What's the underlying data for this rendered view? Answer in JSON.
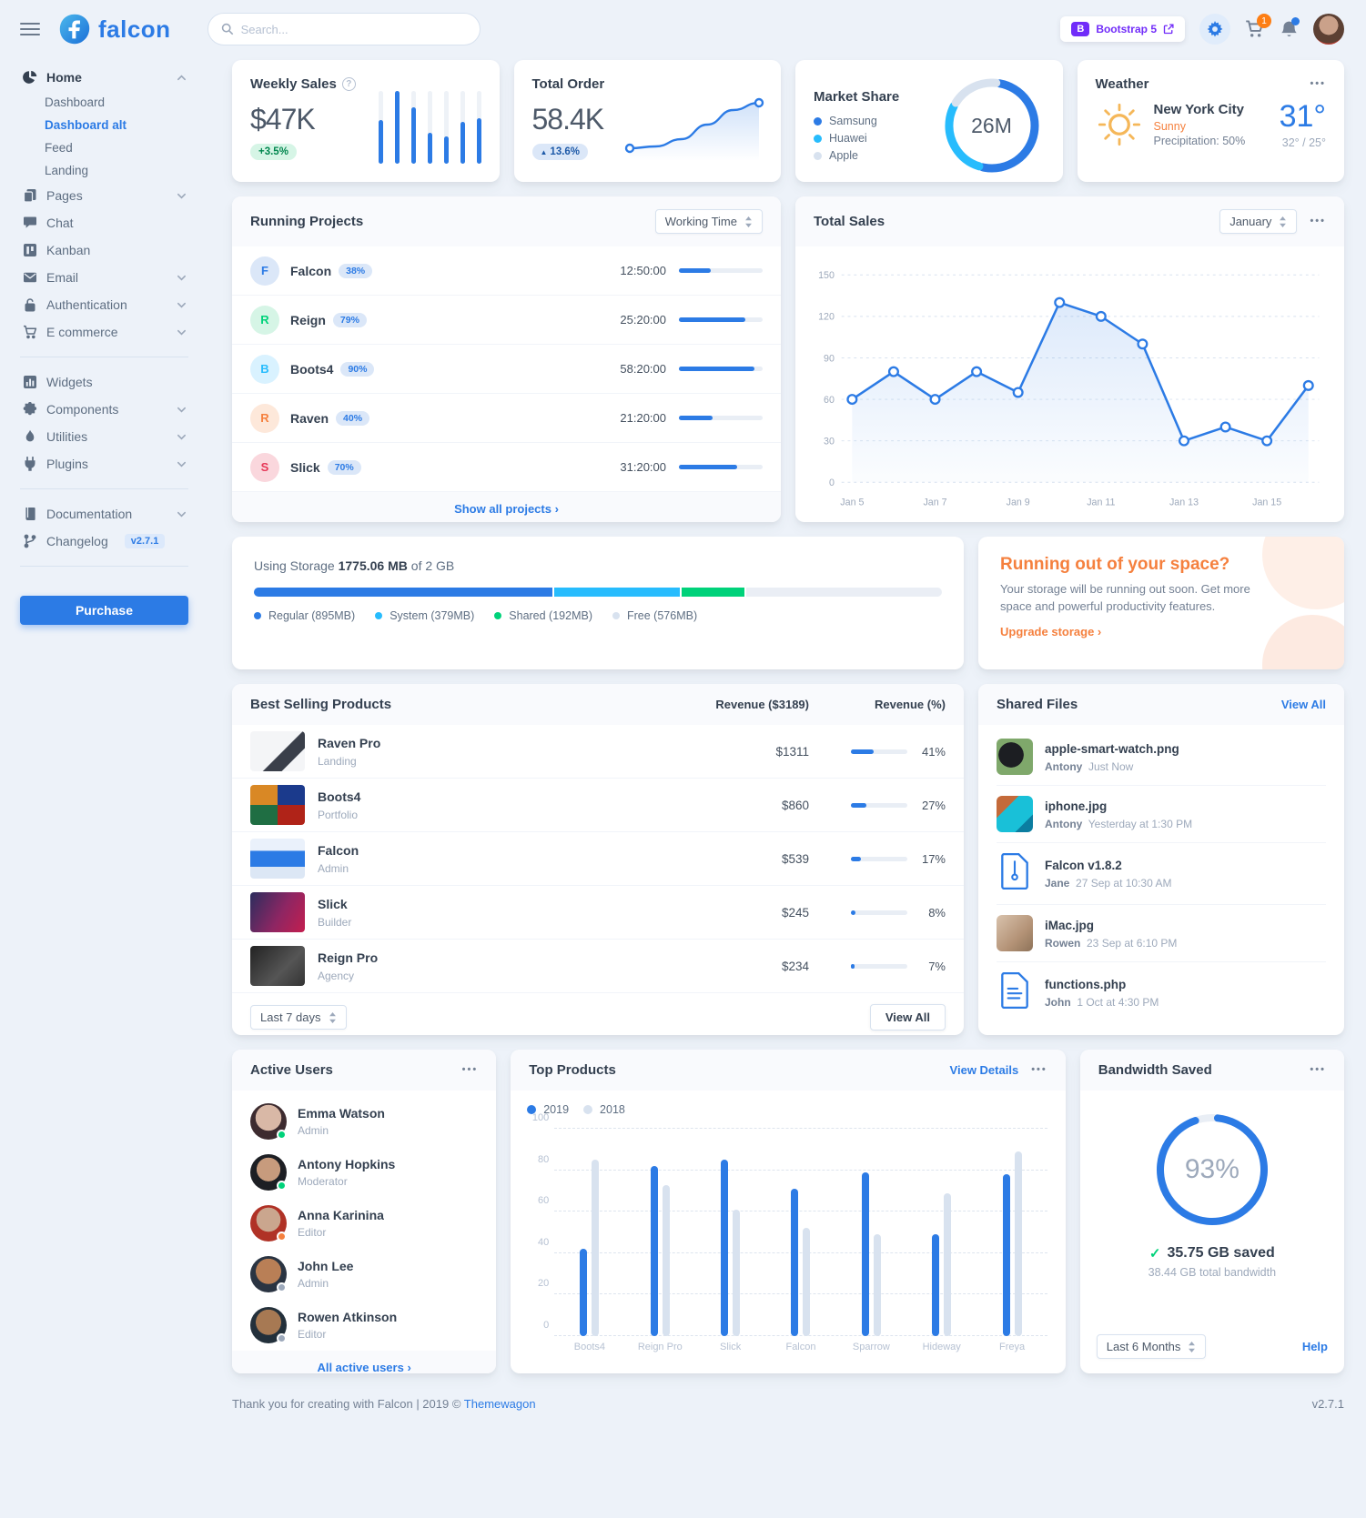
{
  "brand": {
    "name": "falcon"
  },
  "header": {
    "search_placeholder": "Search...",
    "bootstrap_badge": "Bootstrap 5",
    "cart_badge": "1"
  },
  "sidebar": {
    "sections": [
      {
        "items": [
          {
            "label": "Home",
            "icon": "chart-pie",
            "chevron": "up",
            "active": true,
            "children": [
              {
                "label": "Dashboard",
                "active": false
              },
              {
                "label": "Dashboard alt",
                "active": true
              },
              {
                "label": "Feed",
                "active": false
              },
              {
                "label": "Landing",
                "active": false
              }
            ]
          },
          {
            "label": "Pages",
            "icon": "copy",
            "chevron": "down"
          },
          {
            "label": "Chat",
            "icon": "chat"
          },
          {
            "label": "Kanban",
            "icon": "kanban"
          },
          {
            "label": "Email",
            "icon": "envelope",
            "chevron": "down"
          },
          {
            "label": "Authentication",
            "icon": "lock",
            "chevron": "down"
          },
          {
            "label": "E commerce",
            "icon": "cart",
            "chevron": "down"
          }
        ]
      },
      {
        "items": [
          {
            "label": "Widgets",
            "icon": "chart-bar"
          },
          {
            "label": "Components",
            "icon": "puzzle",
            "chevron": "down"
          },
          {
            "label": "Utilities",
            "icon": "fire",
            "chevron": "down"
          },
          {
            "label": "Plugins",
            "icon": "plug",
            "chevron": "down"
          }
        ]
      },
      {
        "items": [
          {
            "label": "Documentation",
            "icon": "book",
            "chevron": "down"
          },
          {
            "label": "Changelog",
            "icon": "code-branch",
            "badge": "v2.7.1"
          }
        ]
      }
    ],
    "purchase_label": "Purchase"
  },
  "weekly_sales": {
    "title": "Weekly Sales",
    "value": "$47K",
    "badge": "+3.5%",
    "bars": [
      60,
      100,
      78,
      42,
      38,
      58,
      62
    ]
  },
  "total_order": {
    "title": "Total Order",
    "value": "58.4K",
    "badge": "13.6%",
    "points": [
      62,
      60,
      52,
      36,
      20,
      12
    ]
  },
  "market_share": {
    "title": "Market Share",
    "center": "26M",
    "segments": [
      {
        "label": "Samsung",
        "color": "#2c7be5",
        "value": 52
      },
      {
        "label": "Huawei",
        "color": "#27bcfd",
        "value": 29
      },
      {
        "label": "Apple",
        "color": "#d8e2ef",
        "value": 19
      }
    ]
  },
  "weather": {
    "title": "Weather",
    "city": "New York City",
    "condition": "Sunny",
    "precipitation": "Precipitation: 50%",
    "temp": "31°",
    "range": "32° / 25°"
  },
  "running_projects": {
    "title": "Running Projects",
    "select": "Working Time",
    "rows": [
      {
        "initial": "F",
        "name": "Falcon",
        "percent": "38%",
        "time": "12:50:00",
        "progress": 38,
        "fg": "#2c7be5",
        "bg": "#dbe7f8"
      },
      {
        "initial": "R",
        "name": "Reign",
        "percent": "79%",
        "time": "25:20:00",
        "progress": 79,
        "fg": "#00d27a",
        "bg": "#d6f5e6"
      },
      {
        "initial": "B",
        "name": "Boots4",
        "percent": "90%",
        "time": "58:20:00",
        "progress": 90,
        "fg": "#27bcfd",
        "bg": "#d9f2ff"
      },
      {
        "initial": "R",
        "name": "Raven",
        "percent": "40%",
        "time": "21:20:00",
        "progress": 40,
        "fg": "#f5803e",
        "bg": "#fde8da"
      },
      {
        "initial": "S",
        "name": "Slick",
        "percent": "70%",
        "time": "31:20:00",
        "progress": 70,
        "fg": "#e63757",
        "bg": "#fad7dd"
      }
    ],
    "footer_link": "Show all projects"
  },
  "total_sales": {
    "title": "Total Sales",
    "select": "January",
    "y_ticks": [
      0,
      30,
      60,
      90,
      120,
      150
    ],
    "x_labels": [
      "Jan 5",
      "Jan 7",
      "Jan 9",
      "Jan 11",
      "Jan 13",
      "Jan 15"
    ],
    "values": [
      60,
      80,
      60,
      80,
      65,
      130,
      120,
      100,
      30,
      40,
      30,
      70
    ]
  },
  "storage": {
    "label": "Using Storage",
    "used": "1775.06 MB",
    "total": "of 2 GB",
    "capacity_mb": 2048,
    "segments": [
      {
        "label": "Regular (895MB)",
        "mb": 895,
        "color": "#2c7be5"
      },
      {
        "label": "System (379MB)",
        "mb": 379,
        "color": "#27bcfd"
      },
      {
        "label": "Shared (192MB)",
        "mb": 192,
        "color": "#00d27a"
      },
      {
        "label": "Free (576MB)",
        "mb": 576,
        "color": "#eaeef5"
      }
    ]
  },
  "space_warning": {
    "title": "Running out of your space?",
    "body": "Your storage will be running out soon. Get more space and powerful productivity features.",
    "link": "Upgrade storage"
  },
  "best_selling": {
    "title": "Best Selling Products",
    "col_revenue": "Revenue ($3189)",
    "col_percent": "Revenue (%)",
    "rows": [
      {
        "name": "Raven Pro",
        "type": "Landing",
        "revenue": "$1311",
        "percent": 41
      },
      {
        "name": "Boots4",
        "type": "Portfolio",
        "revenue": "$860",
        "percent": 27
      },
      {
        "name": "Falcon",
        "type": "Admin",
        "revenue": "$539",
        "percent": 17
      },
      {
        "name": "Slick",
        "type": "Builder",
        "revenue": "$245",
        "percent": 8
      },
      {
        "name": "Reign Pro",
        "type": "Agency",
        "revenue": "$234",
        "percent": 7
      }
    ],
    "select": "Last 7 days",
    "view_all": "View All"
  },
  "shared_files": {
    "title": "Shared Files",
    "view_all": "View All",
    "files": [
      {
        "name": "apple-smart-watch.png",
        "user": "Antony",
        "time": "Just Now",
        "kind": "image"
      },
      {
        "name": "iphone.jpg",
        "user": "Antony",
        "time": "Yesterday at 1:30 PM",
        "kind": "image"
      },
      {
        "name": "Falcon v1.8.2",
        "user": "Jane",
        "time": "27 Sep at 10:30 AM",
        "kind": "archive"
      },
      {
        "name": "iMac.jpg",
        "user": "Rowen",
        "time": "23 Sep at 6:10 PM",
        "kind": "image"
      },
      {
        "name": "functions.php",
        "user": "John",
        "time": "1 Oct at 4:30 PM",
        "kind": "code"
      }
    ]
  },
  "active_users": {
    "title": "Active Users",
    "users": [
      {
        "name": "Emma Watson",
        "role": "Admin",
        "status": "#00d27a"
      },
      {
        "name": "Antony Hopkins",
        "role": "Moderator",
        "status": "#00d27a"
      },
      {
        "name": "Anna Karinina",
        "role": "Editor",
        "status": "#f5803e"
      },
      {
        "name": "John Lee",
        "role": "Admin",
        "status": "#9da9bb"
      },
      {
        "name": "Rowen Atkinson",
        "role": "Editor",
        "status": "#9da9bb"
      }
    ],
    "footer_link": "All active users"
  },
  "top_products": {
    "title": "Top Products",
    "view_details": "View Details",
    "legend": [
      {
        "label": "2019",
        "color": "#2c7be5"
      },
      {
        "label": "2018",
        "color": "#d8e2ef"
      }
    ],
    "categories": [
      "Boots4",
      "Reign Pro",
      "Slick",
      "Falcon",
      "Sparrow",
      "Hideway",
      "Freya"
    ],
    "series": [
      {
        "name": "2019",
        "color": "#2c7be5",
        "values": [
          42,
          82,
          85,
          71,
          79,
          49,
          78
        ]
      },
      {
        "name": "2018",
        "color": "#d8e2ef",
        "values": [
          85,
          73,
          61,
          52,
          49,
          69,
          89
        ]
      }
    ],
    "y_ticks": [
      0,
      20,
      40,
      60,
      80,
      100
    ]
  },
  "bandwidth": {
    "title": "Bandwidth Saved",
    "percent": 93,
    "percent_label": "93%",
    "saved": "35.75 GB saved",
    "total": "38.44 GB total bandwidth",
    "select": "Last 6 Months",
    "help": "Help"
  },
  "footer": {
    "left_prefix": "Thank you for creating with Falcon | 2019 © ",
    "brand": "Themewagon",
    "version": "v2.7.1"
  }
}
